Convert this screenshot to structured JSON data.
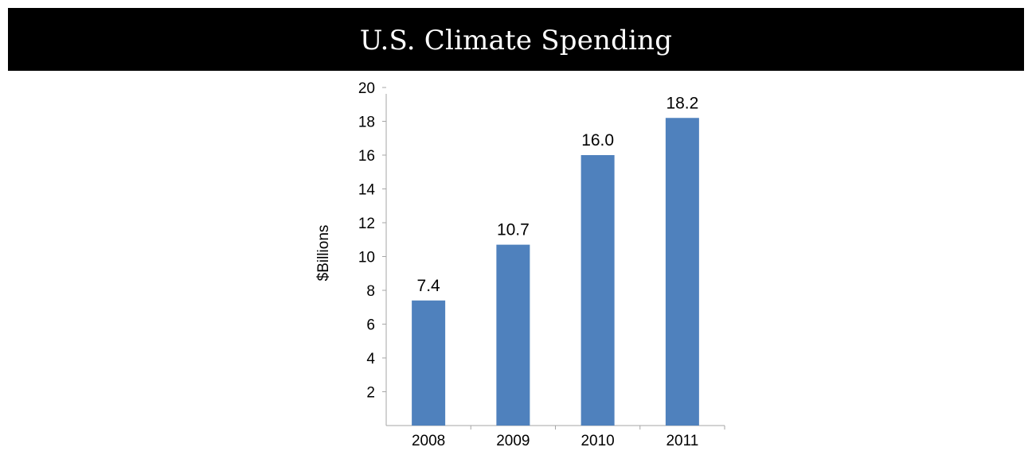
{
  "title": "U.S. Climate Spending",
  "chart_data": {
    "type": "bar",
    "categories": [
      "2008",
      "2009",
      "2010",
      "2011"
    ],
    "values": [
      7.4,
      10.7,
      16.0,
      18.2
    ],
    "value_labels": [
      "7.4",
      "10.7",
      "16.0",
      "18.2"
    ],
    "title": "U.S. Climate Spending",
    "xlabel": "",
    "ylabel": "$Billions",
    "ylim": [
      0,
      20
    ],
    "yticks": [
      2,
      4,
      6,
      8,
      10,
      12,
      14,
      16,
      18,
      20
    ],
    "grid": false,
    "legend": "none",
    "bar_color": "#4F81BD"
  }
}
